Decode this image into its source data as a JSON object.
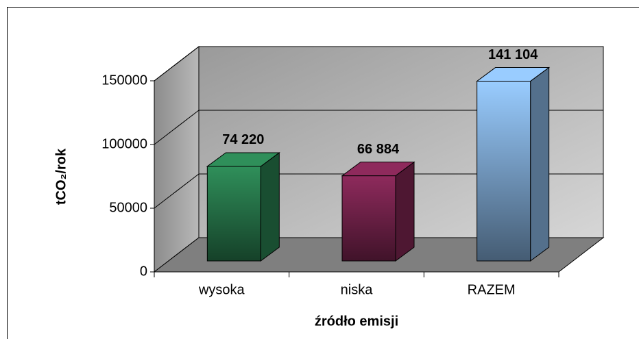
{
  "chart_data": {
    "type": "bar3d",
    "categories": [
      "wysoka",
      "niska",
      "RAZEM"
    ],
    "series": [
      {
        "values": [
          74220,
          66884,
          141104
        ],
        "value_labels": [
          "74 220",
          "66 884",
          "141 104"
        ],
        "colors": [
          "#2f8f5a",
          "#8e2a5c",
          "#99ccff"
        ]
      }
    ],
    "ylim": [
      0,
      150000
    ],
    "yticks": [
      0,
      50000,
      100000,
      150000
    ],
    "grid": true,
    "ylabel": "tCO₂/rok",
    "xlabel": "źródło emisji"
  }
}
